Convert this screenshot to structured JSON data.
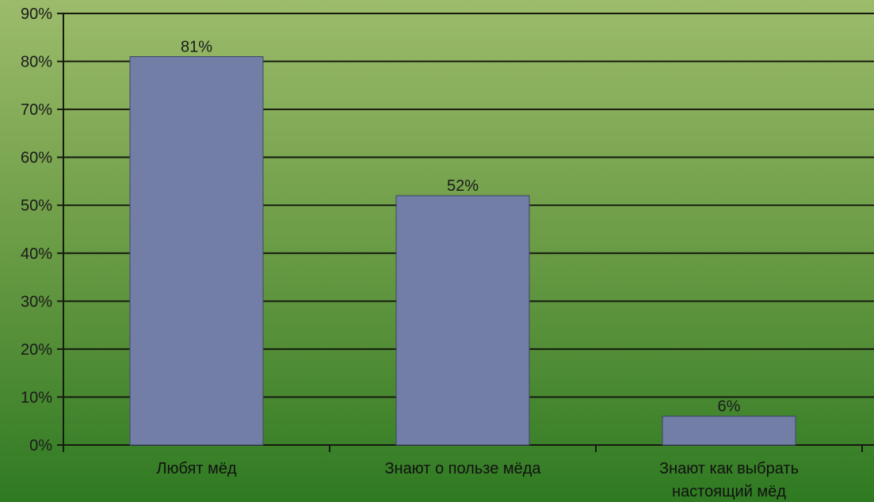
{
  "chart_data": {
    "type": "bar",
    "title": "",
    "xlabel": "",
    "ylabel": "",
    "categories": [
      [
        "Любят мёд"
      ],
      [
        "Знают о пользе мёда"
      ],
      [
        "Знают как выбрать",
        "настоящий мёд"
      ]
    ],
    "series": [
      {
        "values": [
          81,
          52,
          6
        ],
        "data_labels": [
          "81%",
          "52%",
          "6%"
        ]
      }
    ],
    "ylim": [
      0,
      90
    ],
    "yticks": [
      0,
      10,
      20,
      30,
      40,
      50,
      60,
      70,
      80,
      90
    ],
    "ytick_labels": [
      "0%",
      "10%",
      "20%",
      "30%",
      "40%",
      "50%",
      "60%",
      "70%",
      "80%",
      "90%"
    ],
    "grid": true,
    "legend": "none",
    "colors": {
      "bar_fill": "#737ea6",
      "bar_stroke": "#3d4668",
      "gridline": "#151a0f",
      "axis": "#151a0f"
    }
  }
}
